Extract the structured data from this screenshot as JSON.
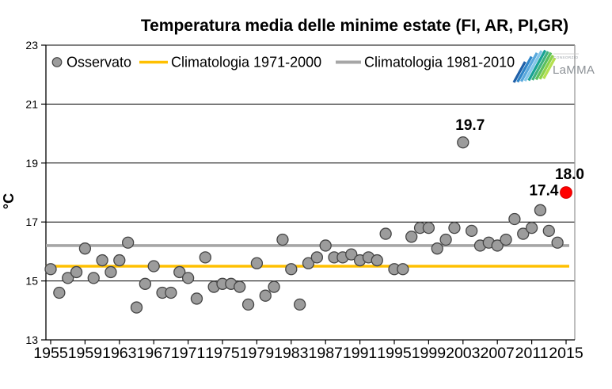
{
  "title": "Temperatura media delle minime estate (FI, AR, PI,GR)",
  "y_axis_title": "°C",
  "colors": {
    "observed_fill": "#9C9C9C",
    "observed_stroke": "#454545",
    "climatology_1971_2000": "#FFC000",
    "climatology_1981_2010": "#A6A6A6",
    "highlight": "#FF0000",
    "grid": "#000000",
    "right_border": "#9b9b9b"
  },
  "legend": {
    "items": [
      {
        "label": "Osservato",
        "marker": "circle"
      },
      {
        "label": "Climatologia 1971-2000",
        "marker": "line",
        "color": "#FFC000"
      },
      {
        "label": "Climatologia 1981-2010",
        "marker": "line",
        "color": "#A6A6A6"
      }
    ]
  },
  "logo": {
    "text_top": "CONSORZIO",
    "text_main": "LaMMA",
    "stripe_colors": [
      "#1E5FA8",
      "#2F86C9",
      "#58A8DC",
      "#83C6EA",
      "#18A294",
      "#3FB37E",
      "#5ABE5F",
      "#8BD24A",
      "#B5E04F"
    ]
  },
  "chart_data": {
    "type": "scatter",
    "title": "Temperatura media delle minime estate (FI, AR, PI,GR)",
    "ylabel": "°C",
    "xlim": [
      1954,
      2016.2
    ],
    "ylim": [
      13,
      23
    ],
    "grid": "horizontal",
    "legend_position": "top-inside",
    "x_ticks": [
      1955,
      1959,
      1963,
      1967,
      1971,
      1975,
      1979,
      1983,
      1987,
      1991,
      1995,
      1999,
      2003,
      2007,
      2011,
      2015
    ],
    "y_ticks": [
      13,
      15,
      17,
      19,
      21,
      23
    ],
    "series": [
      {
        "name": "Osservato",
        "points": [
          [
            1955,
            15.4
          ],
          [
            1956,
            14.6
          ],
          [
            1957,
            15.1
          ],
          [
            1958,
            15.3
          ],
          [
            1959,
            16.1
          ],
          [
            1960,
            15.1
          ],
          [
            1961,
            15.7
          ],
          [
            1962,
            15.3
          ],
          [
            1963,
            15.7
          ],
          [
            1964,
            16.3
          ],
          [
            1965,
            14.1
          ],
          [
            1966,
            14.9
          ],
          [
            1967,
            15.5
          ],
          [
            1968,
            14.6
          ],
          [
            1969,
            14.6
          ],
          [
            1970,
            15.3
          ],
          [
            1971,
            15.1
          ],
          [
            1972,
            14.4
          ],
          [
            1973,
            15.8
          ],
          [
            1974,
            14.8
          ],
          [
            1975,
            14.9
          ],
          [
            1976,
            14.9
          ],
          [
            1977,
            14.8
          ],
          [
            1978,
            14.2
          ],
          [
            1979,
            15.6
          ],
          [
            1980,
            14.5
          ],
          [
            1981,
            14.8
          ],
          [
            1982,
            16.4
          ],
          [
            1983,
            15.4
          ],
          [
            1984,
            14.2
          ],
          [
            1985,
            15.6
          ],
          [
            1986,
            15.8
          ],
          [
            1987,
            16.2
          ],
          [
            1988,
            15.8
          ],
          [
            1989,
            15.8
          ],
          [
            1990,
            15.9
          ],
          [
            1991,
            15.7
          ],
          [
            1992,
            15.8
          ],
          [
            1993,
            15.7
          ],
          [
            1994,
            16.6
          ],
          [
            1995,
            15.4
          ],
          [
            1996,
            15.4
          ],
          [
            1997,
            16.5
          ],
          [
            1998,
            16.8
          ],
          [
            1999,
            16.8
          ],
          [
            2000,
            16.1
          ],
          [
            2001,
            16.4
          ],
          [
            2002,
            16.8
          ],
          [
            2003,
            19.7
          ],
          [
            2004,
            16.7
          ],
          [
            2005,
            16.2
          ],
          [
            2006,
            16.3
          ],
          [
            2007,
            16.2
          ],
          [
            2008,
            16.4
          ],
          [
            2009,
            17.1
          ],
          [
            2010,
            16.6
          ],
          [
            2011,
            16.8
          ],
          [
            2012,
            17.4
          ],
          [
            2013,
            16.7
          ],
          [
            2014,
            16.3
          ]
        ]
      }
    ],
    "highlight_point": {
      "x": 2015,
      "y": 18.0,
      "color": "#FF0000"
    },
    "reference_lines": [
      {
        "name": "Climatologia 1971-2000",
        "value": 15.5,
        "color": "#FFC000"
      },
      {
        "name": "Climatologia 1981-2010",
        "value": 16.2,
        "color": "#A6A6A6"
      }
    ],
    "annotations": [
      {
        "text": "19.7",
        "x": 2003,
        "y": 19.7
      },
      {
        "text": "17.4",
        "x": 2012,
        "y": 17.4
      },
      {
        "text": "18.0",
        "x": 2015,
        "y": 18.0
      }
    ]
  }
}
